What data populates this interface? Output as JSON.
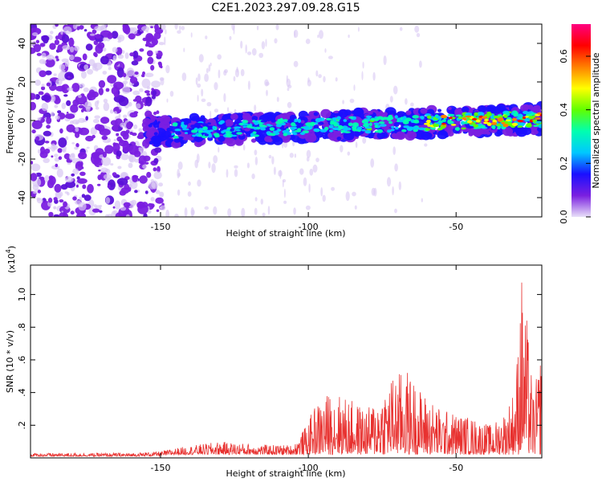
{
  "title": "C2E1.2023.297.09.28.G15",
  "chart_data": [
    {
      "type": "heatmap",
      "title": "C2E1.2023.297.09.28.G15",
      "xlabel": "Height of straight line (km)",
      "ylabel": "Frequency (Hz)",
      "xlim": [
        -194,
        -21
      ],
      "ylim": [
        -50,
        50
      ],
      "x_ticks": [
        -150,
        -100,
        -50
      ],
      "y_ticks": [
        -40,
        -20,
        0,
        20,
        40
      ],
      "colorbar": {
        "label": "Normalized spectral amplitude",
        "range": [
          0.0,
          0.72
        ],
        "ticks": [
          0.0,
          0.2,
          0.4,
          0.6
        ],
        "colormap": [
          "#e8e0f8",
          "#7a1fe0",
          "#1a10ff",
          "#00c8ff",
          "#00ffb0",
          "#60ff00",
          "#ffff00",
          "#ff8000",
          "#ff0000",
          "#ff0080"
        ]
      },
      "ridge": {
        "x": [
          -155,
          -21
        ],
        "y_center": [
          -6,
          1
        ],
        "description_only": false
      },
      "dense_region_x": [
        -194,
        -155
      ]
    },
    {
      "type": "line",
      "xlabel": "Height of straight line (km)",
      "ylabel": "SNR (10 * v/v)",
      "y_multiplier": "(x10",
      "y_multiplier_exp": "4",
      "y_multiplier_close": ")",
      "xlim": [
        -194,
        -21
      ],
      "ylim": [
        0.0,
        1.18
      ],
      "x_ticks": [
        -150,
        -100,
        -50
      ],
      "y_ticks": [
        0.2,
        0.4,
        0.6,
        0.8,
        1.0
      ],
      "color": "#e8312f",
      "envelope": [
        {
          "x": -194,
          "y": 0.03
        },
        {
          "x": -160,
          "y": 0.03
        },
        {
          "x": -150,
          "y": 0.04
        },
        {
          "x": -145,
          "y": 0.06
        },
        {
          "x": -130,
          "y": 0.1
        },
        {
          "x": -115,
          "y": 0.08
        },
        {
          "x": -105,
          "y": 0.08
        },
        {
          "x": -100,
          "y": 0.22
        },
        {
          "x": -98,
          "y": 0.32
        },
        {
          "x": -92,
          "y": 0.42
        },
        {
          "x": -80,
          "y": 0.3
        },
        {
          "x": -72,
          "y": 0.5
        },
        {
          "x": -67,
          "y": 0.55
        },
        {
          "x": -62,
          "y": 0.42
        },
        {
          "x": -55,
          "y": 0.3
        },
        {
          "x": -45,
          "y": 0.25
        },
        {
          "x": -38,
          "y": 0.2
        },
        {
          "x": -33,
          "y": 0.3
        },
        {
          "x": -30,
          "y": 0.45
        },
        {
          "x": -29,
          "y": 0.75
        },
        {
          "x": -28,
          "y": 1.18
        },
        {
          "x": -27,
          "y": 0.95
        },
        {
          "x": -26,
          "y": 0.85
        },
        {
          "x": -24,
          "y": 0.4
        },
        {
          "x": -22,
          "y": 0.55
        },
        {
          "x": -21,
          "y": 0.75
        }
      ]
    }
  ]
}
